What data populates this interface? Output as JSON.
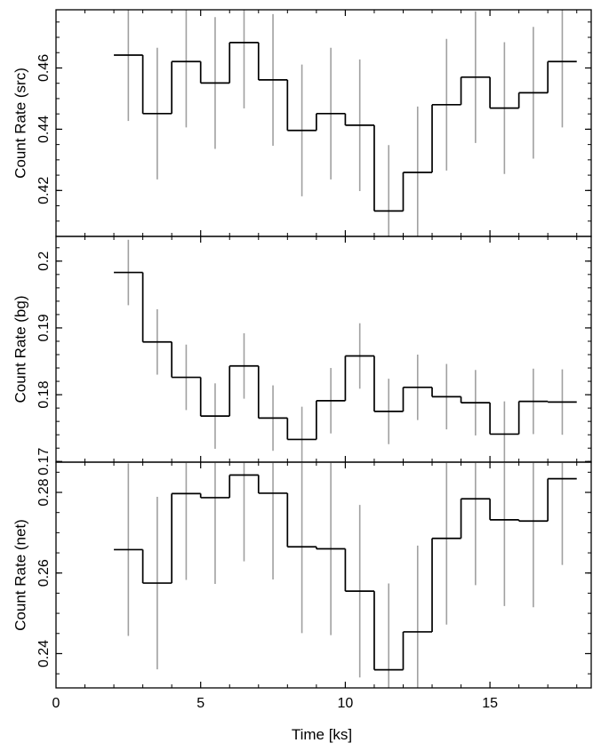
{
  "chart_data": [
    {
      "type": "line",
      "ylabel": "Count Rate (src)",
      "xlim": [
        0,
        18.5
      ],
      "ylim": [
        0.405,
        0.479
      ],
      "yticks_major": [
        0.42,
        0.44,
        0.46
      ],
      "ytick_labels": [
        "0.42",
        "0.44",
        "0.46"
      ],
      "yminor_step": 0.005,
      "bin_width": 1.0,
      "series": [
        {
          "style": "histogram-step",
          "color": "#000000",
          "x": [
            2.5,
            3.5,
            4.5,
            5.5,
            6.5,
            7.5,
            8.5,
            9.5,
            10.5,
            11.5,
            12.5,
            13.5,
            14.5,
            15.5,
            16.5,
            17.5
          ],
          "y": [
            0.4642,
            0.4451,
            0.4621,
            0.4551,
            0.4683,
            0.4561,
            0.4396,
            0.4451,
            0.4413,
            0.4133,
            0.4259,
            0.448,
            0.457,
            0.4469,
            0.4519,
            0.4621
          ],
          "err": [
            0.0215,
            0.0215,
            0.0215,
            0.0215,
            0.0215,
            0.0215,
            0.0215,
            0.0215,
            0.0215,
            0.0215,
            0.0215,
            0.0215,
            0.0215,
            0.0215,
            0.0215,
            0.0215
          ]
        }
      ]
    },
    {
      "type": "line",
      "ylabel": "Count Rate (bg)",
      "xlim": [
        0,
        18.5
      ],
      "ylim": [
        0.1699,
        0.2037
      ],
      "yticks_major": [
        0.17,
        0.18,
        0.19,
        0.2
      ],
      "ytick_labels": [
        "0.17",
        "0.18",
        "0.19",
        "0.2"
      ],
      "yminor_step": 0.002,
      "bin_width": 1.0,
      "series": [
        {
          "style": "histogram-step",
          "color": "#000000",
          "x": [
            2.5,
            3.5,
            4.5,
            5.5,
            6.5,
            7.5,
            8.5,
            9.5,
            10.5,
            11.5,
            12.5,
            13.5,
            14.5,
            15.5,
            16.5,
            17.5
          ],
          "y": [
            0.1983,
            0.1879,
            0.1826,
            0.1768,
            0.1843,
            0.1765,
            0.1733,
            0.1791,
            0.1858,
            0.1775,
            0.1811,
            0.1797,
            0.1788,
            0.1741,
            0.179,
            0.1789
          ],
          "err": [
            0.0049,
            0.0049,
            0.0049,
            0.0049,
            0.0049,
            0.0049,
            0.0049,
            0.0049,
            0.0049,
            0.0049,
            0.0049,
            0.0049,
            0.0049,
            0.0049,
            0.0049,
            0.0049
          ]
        }
      ]
    },
    {
      "type": "line",
      "ylabel": "Count Rate (net)",
      "xlabel": "Time [ks]",
      "xlim": [
        0,
        18.5
      ],
      "xticks_major": [
        0,
        5,
        10,
        15
      ],
      "xtick_labels": [
        "0",
        "5",
        "10",
        "15"
      ],
      "xminor_step": 1,
      "ylim": [
        0.2315,
        0.2875
      ],
      "yticks_major": [
        0.24,
        0.26,
        0.28
      ],
      "ytick_labels": [
        "0.24",
        "0.26",
        "0.28"
      ],
      "yminor_step": 0.005,
      "bin_width": 1.0,
      "series": [
        {
          "style": "histogram-step",
          "color": "#000000",
          "x": [
            2.5,
            3.5,
            4.5,
            5.5,
            6.5,
            7.5,
            8.5,
            9.5,
            10.5,
            11.5,
            12.5,
            13.5,
            14.5,
            15.5,
            16.5,
            17.5
          ],
          "y": [
            0.2658,
            0.2575,
            0.2797,
            0.2787,
            0.2843,
            0.2798,
            0.2665,
            0.266,
            0.2555,
            0.236,
            0.2454,
            0.2686,
            0.2784,
            0.2732,
            0.2729,
            0.2834
          ],
          "err": [
            0.0214,
            0.0214,
            0.0214,
            0.0214,
            0.0214,
            0.0214,
            0.0214,
            0.0214,
            0.0214,
            0.0214,
            0.0214,
            0.0214,
            0.0214,
            0.0214,
            0.0214,
            0.0214
          ]
        }
      ]
    }
  ],
  "colors": {
    "line": "#000000",
    "error_bar": "#a0a0a0",
    "axes": "#000000"
  }
}
